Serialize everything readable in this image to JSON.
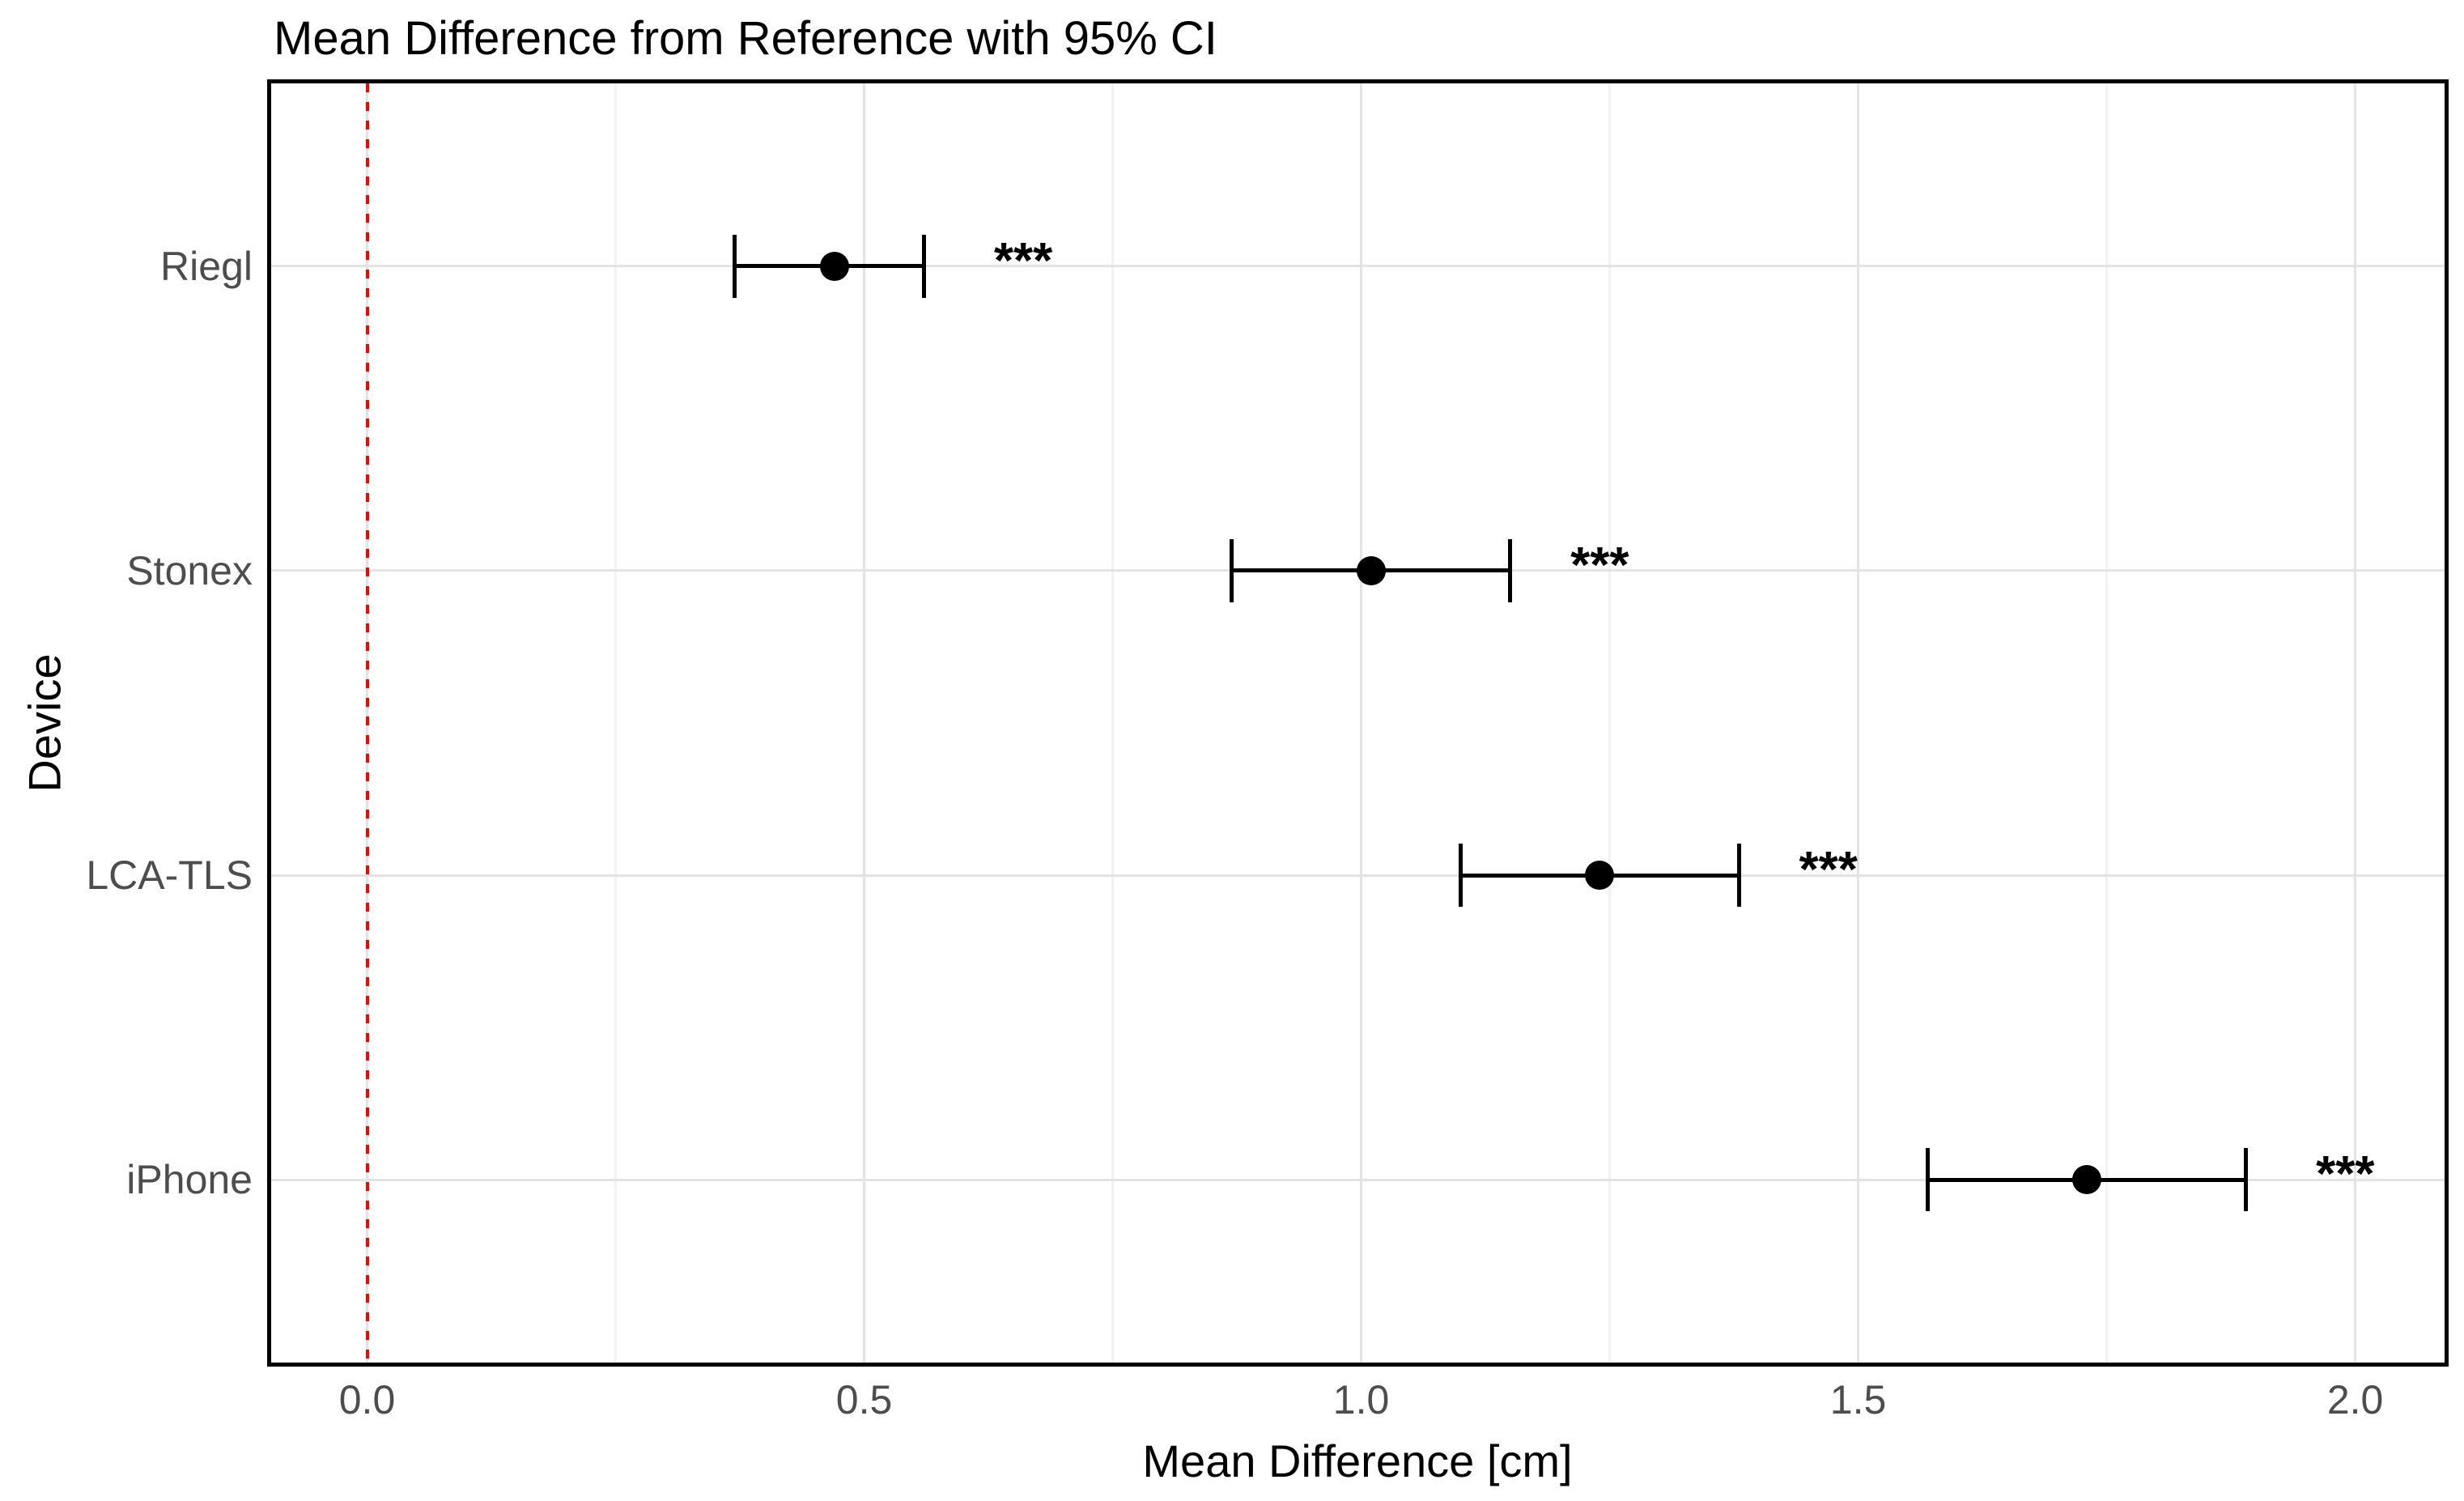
{
  "chart_data": {
    "type": "scatter",
    "subtype": "dot-and-errorbar-forest-plot",
    "title": "Mean Difference from Reference with 95% CI",
    "xlabel": "Mean Difference [cm]",
    "ylabel": "Device",
    "legend_position": "none",
    "categories": [
      "Riegl",
      "Stonex",
      "LCA-TLS",
      "iPhone"
    ],
    "series": [
      {
        "device": "Riegl",
        "mean": 0.47,
        "ci_low": 0.37,
        "ci_high": 0.56,
        "significance": "***",
        "sig_label_x": 0.66
      },
      {
        "device": "Stonex",
        "mean": 1.01,
        "ci_low": 0.87,
        "ci_high": 1.15,
        "significance": "***",
        "sig_label_x": 1.24
      },
      {
        "device": "LCA-TLS",
        "mean": 1.24,
        "ci_low": 1.1,
        "ci_high": 1.38,
        "significance": "***",
        "sig_label_x": 1.47
      },
      {
        "device": "iPhone",
        "mean": 1.73,
        "ci_low": 1.57,
        "ci_high": 1.89,
        "significance": "***",
        "sig_label_x": 1.99
      }
    ],
    "x_axis": {
      "min": -0.0965,
      "max": 2.0899,
      "ticks": [
        0.0,
        0.5,
        1.0,
        1.5,
        2.0
      ],
      "tick_labels": [
        "0.0",
        "0.5",
        "1.0",
        "1.5",
        "2.0"
      ],
      "minor_ticks": [
        0.25,
        0.75,
        1.25,
        1.75
      ],
      "grid": true
    },
    "reference_line": {
      "x": 0.0,
      "style": "dashed",
      "color": "#ff0000"
    },
    "colors": {
      "point": "#000000",
      "errorbar": "#000000",
      "grid_major": "#e3e3e3",
      "grid_minor": "#f2f2f2",
      "panel_border": "#000000",
      "axis_text": "#4d4d4d",
      "title_text": "#000000",
      "reference": "#ff0000"
    }
  }
}
